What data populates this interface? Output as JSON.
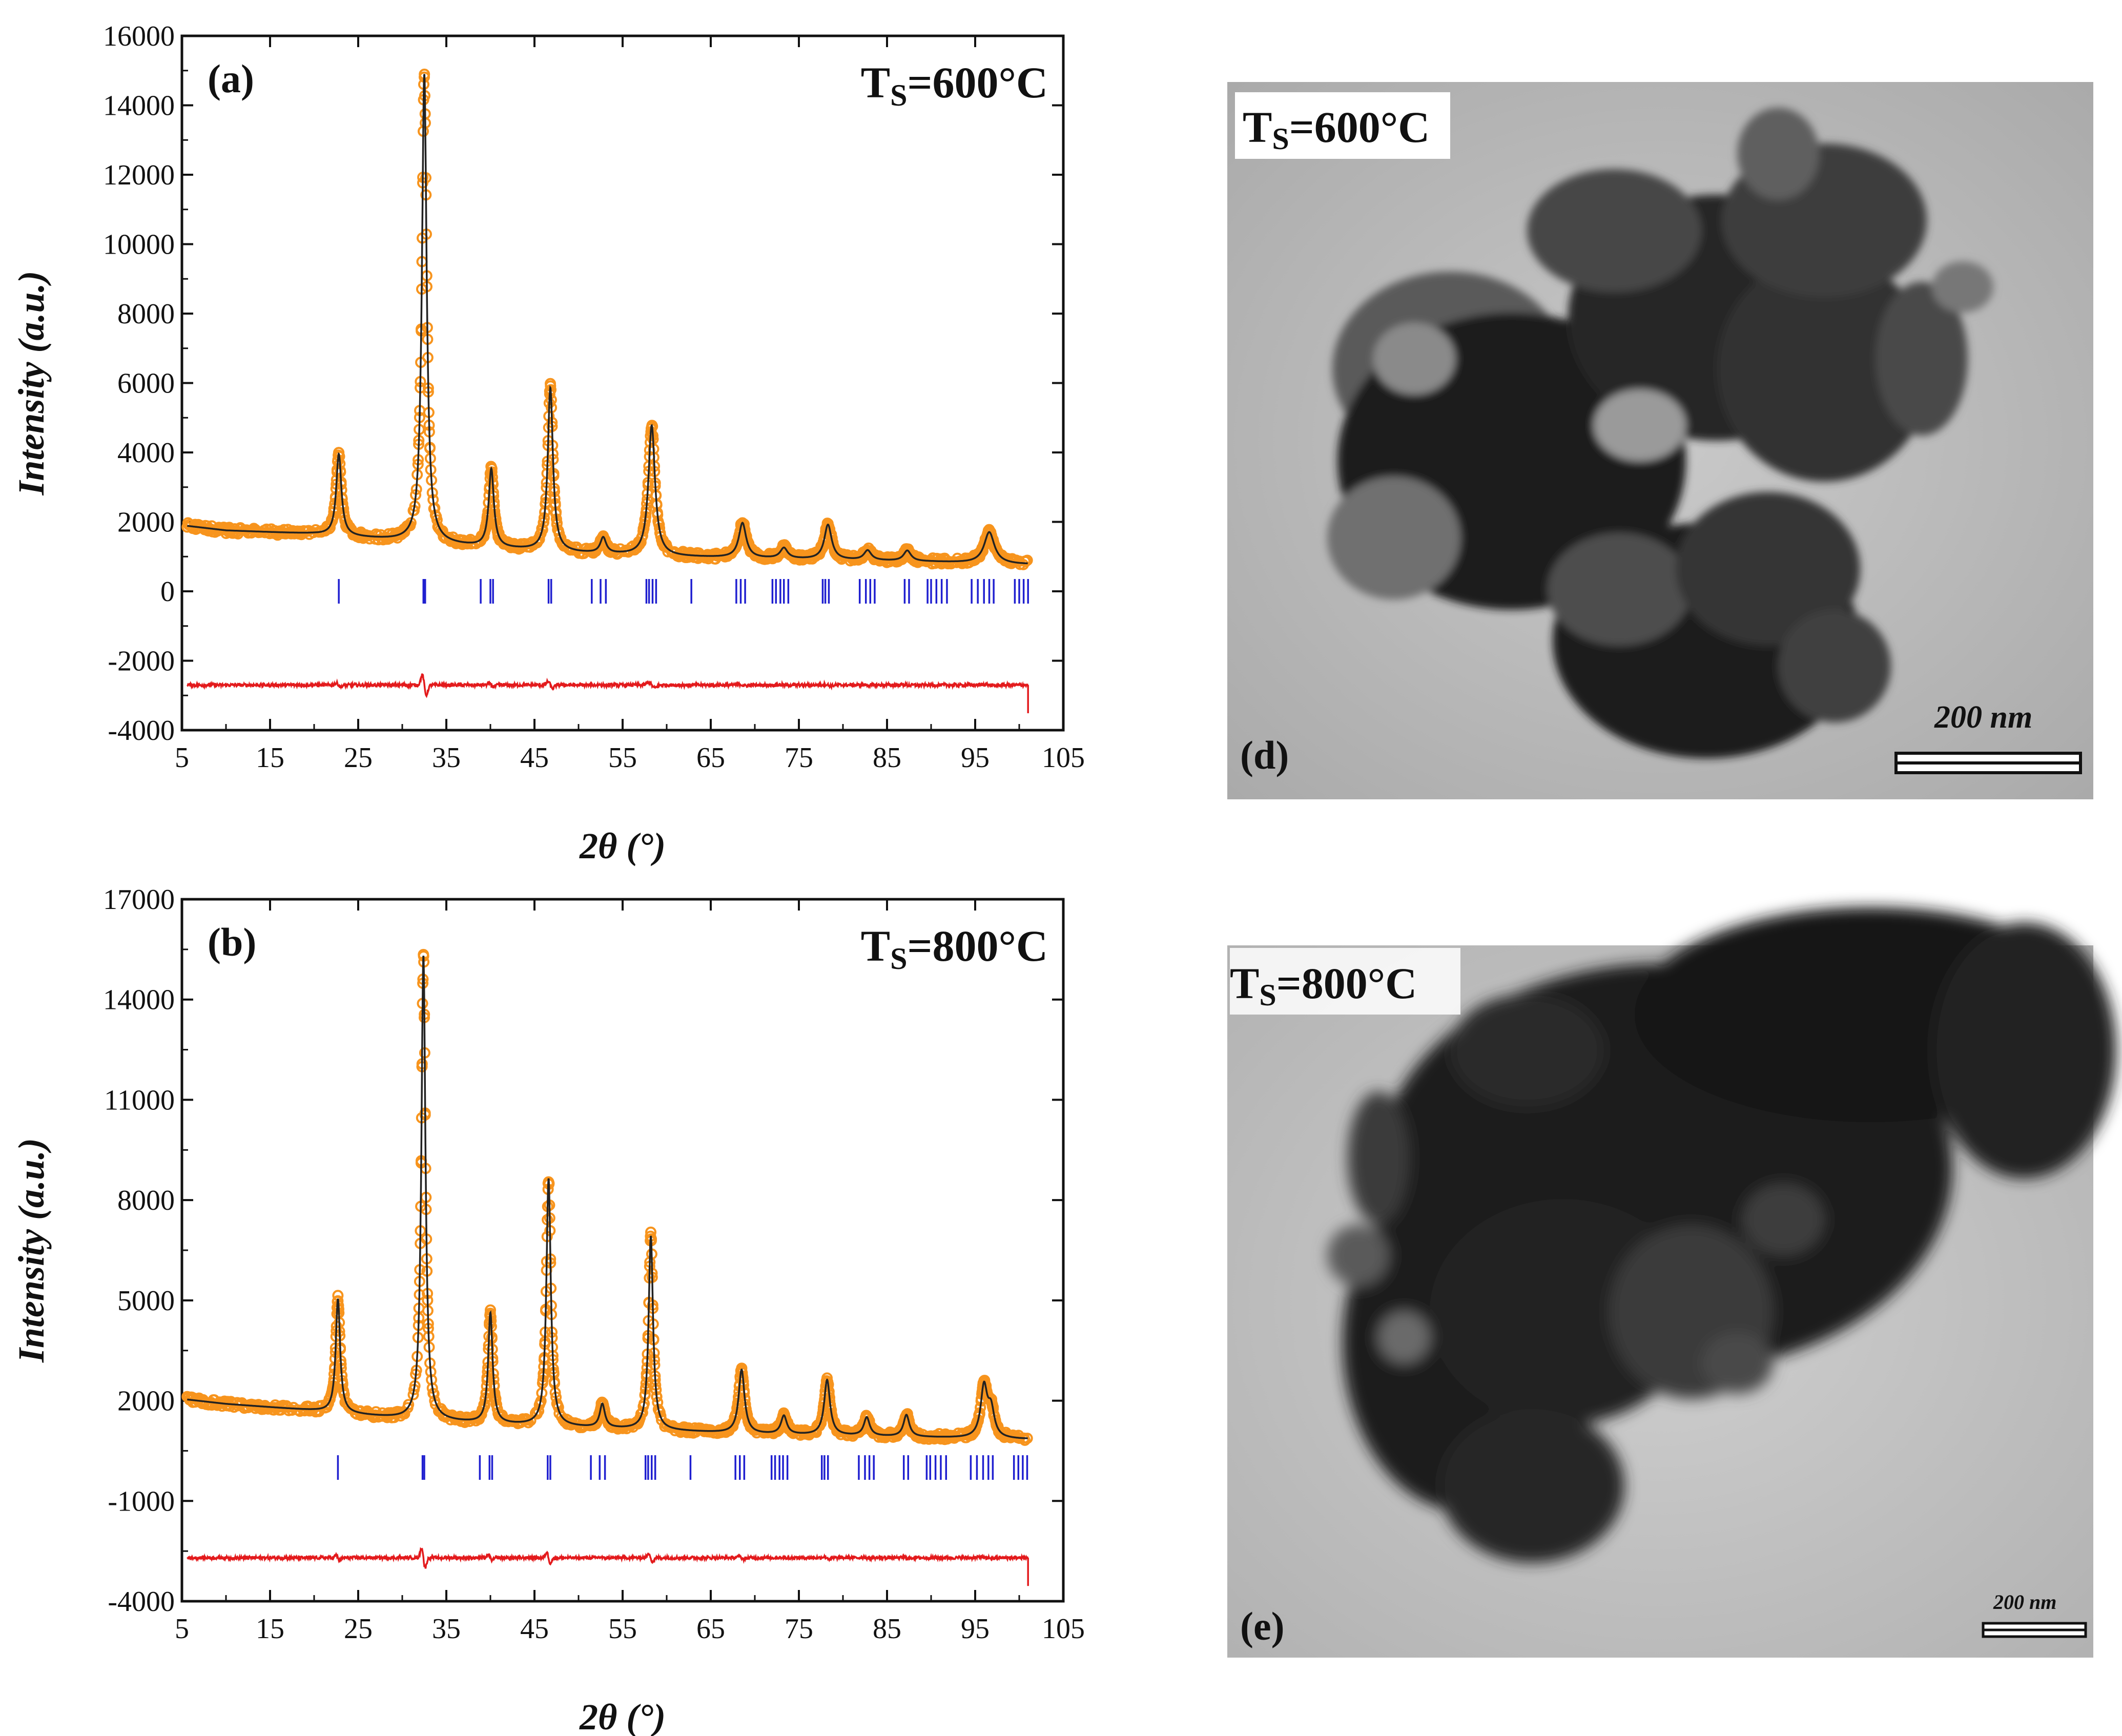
{
  "chart_data": [
    {
      "type": "line",
      "panel": "(a)",
      "title_main": "T",
      "title_sub": "S",
      "title_rest": "=600°C",
      "xlabel": "2θ (°)",
      "ylabel": "Intensity (a.u.)",
      "xlim": [
        5,
        105
      ],
      "ylim": [
        -4000,
        16000
      ],
      "xticks": [
        5,
        15,
        25,
        35,
        45,
        55,
        65,
        75,
        85,
        95,
        105
      ],
      "yticks": [
        -4000,
        -2000,
        0,
        2000,
        4000,
        6000,
        8000,
        10000,
        12000,
        14000,
        16000
      ],
      "baseline": [
        [
          5,
          1900
        ],
        [
          10,
          1750
        ],
        [
          20,
          1650
        ],
        [
          30,
          1450
        ],
        [
          40,
          1250
        ],
        [
          50,
          1100
        ],
        [
          60,
          1000
        ],
        [
          70,
          950
        ],
        [
          80,
          900
        ],
        [
          90,
          850
        ],
        [
          100,
          780
        ]
      ],
      "peaks": [
        [
          22.8,
          2350,
          0.35
        ],
        [
          32.5,
          13500,
          0.32
        ],
        [
          40.1,
          2250,
          0.35
        ],
        [
          46.8,
          4700,
          0.35
        ],
        [
          52.8,
          450,
          0.4
        ],
        [
          58.3,
          3750,
          0.45
        ],
        [
          68.6,
          1000,
          0.5
        ],
        [
          73.3,
          300,
          0.5
        ],
        [
          78.3,
          1000,
          0.5
        ],
        [
          82.8,
          280,
          0.5
        ],
        [
          87.3,
          300,
          0.5
        ],
        [
          96.6,
          900,
          0.7
        ]
      ],
      "series": [
        {
          "name": "Observed",
          "color": "#f7941d"
        },
        {
          "name": "Calculated",
          "color": "#222222"
        },
        {
          "name": "Difference",
          "color": "#e31a1c",
          "offset": -2700
        },
        {
          "name": "Bragg positions",
          "color": "#1f1fd0",
          "y": 0
        }
      ],
      "bragg_positions": [
        22.8,
        32.4,
        32.6,
        38.9,
        40.0,
        40.3,
        46.6,
        46.9,
        51.5,
        52.5,
        53.1,
        57.7,
        58.0,
        58.4,
        58.8,
        62.8,
        67.9,
        68.4,
        68.9,
        72.0,
        72.4,
        72.9,
        73.3,
        73.8,
        77.7,
        78.0,
        78.4,
        81.9,
        82.6,
        83.1,
        83.6,
        87.0,
        87.5,
        89.6,
        90.0,
        90.6,
        91.2,
        91.8,
        94.6,
        95.3,
        96.0,
        96.6,
        97.1,
        99.5,
        100.0,
        100.5,
        101.0
      ]
    },
    {
      "type": "line",
      "panel": "(b)",
      "title_main": "T",
      "title_sub": "S",
      "title_rest": "=800°C",
      "xlabel": "2θ (°)",
      "ylabel": "Intensity (a.u.)",
      "xlim": [
        5,
        105
      ],
      "ylim": [
        -4000,
        17000
      ],
      "xticks": [
        5,
        15,
        25,
        35,
        45,
        55,
        65,
        75,
        85,
        95,
        105
      ],
      "yticks": [
        -4000,
        -1000,
        2000,
        5000,
        8000,
        11000,
        14000,
        17000
      ],
      "ytick_labels": [
        "-4000",
        "-1000",
        "2000",
        "5000",
        "8000",
        "11000",
        "14000",
        "17000"
      ],
      "baseline": [
        [
          5,
          2050
        ],
        [
          10,
          1900
        ],
        [
          20,
          1700
        ],
        [
          30,
          1450
        ],
        [
          40,
          1300
        ],
        [
          50,
          1200
        ],
        [
          60,
          1100
        ],
        [
          70,
          1000
        ],
        [
          80,
          950
        ],
        [
          90,
          900
        ],
        [
          100,
          850
        ]
      ],
      "peaks": [
        [
          22.7,
          3400,
          0.3
        ],
        [
          32.4,
          13900,
          0.28
        ],
        [
          40.0,
          3300,
          0.3
        ],
        [
          46.6,
          7400,
          0.3
        ],
        [
          52.7,
          700,
          0.35
        ],
        [
          58.2,
          5800,
          0.3
        ],
        [
          68.5,
          1900,
          0.4
        ],
        [
          73.3,
          550,
          0.4
        ],
        [
          78.2,
          1650,
          0.4
        ],
        [
          82.7,
          550,
          0.4
        ],
        [
          87.2,
          650,
          0.4
        ],
        [
          96.0,
          1500,
          0.45
        ],
        [
          96.8,
          800,
          0.45
        ]
      ],
      "series": [
        {
          "name": "Observed",
          "color": "#f7941d"
        },
        {
          "name": "Calculated",
          "color": "#222222"
        },
        {
          "name": "Difference",
          "color": "#e31a1c",
          "offset": -2700
        },
        {
          "name": "Bragg positions",
          "color": "#1f1fd0",
          "y": 0
        }
      ],
      "bragg_positions": [
        22.7,
        32.3,
        32.5,
        38.8,
        39.9,
        40.2,
        46.5,
        46.8,
        51.4,
        52.4,
        53.0,
        57.6,
        57.9,
        58.3,
        58.7,
        62.7,
        67.8,
        68.3,
        68.8,
        71.9,
        72.3,
        72.8,
        73.2,
        73.7,
        77.6,
        77.9,
        78.3,
        81.8,
        82.5,
        83.0,
        83.5,
        86.9,
        87.4,
        89.5,
        89.9,
        90.5,
        91.1,
        91.7,
        94.5,
        95.2,
        95.9,
        96.5,
        97.0,
        99.4,
        99.9,
        100.4,
        100.9
      ]
    }
  ],
  "tem": [
    {
      "panel": "(d)",
      "title_main": "T",
      "title_sub": "S",
      "title_rest": "=600°C",
      "scale_label": "200 nm"
    },
    {
      "panel": "(e)",
      "title_main": "T",
      "title_sub": "S",
      "title_rest": "=800°C",
      "scale_label": "200 nm"
    }
  ]
}
